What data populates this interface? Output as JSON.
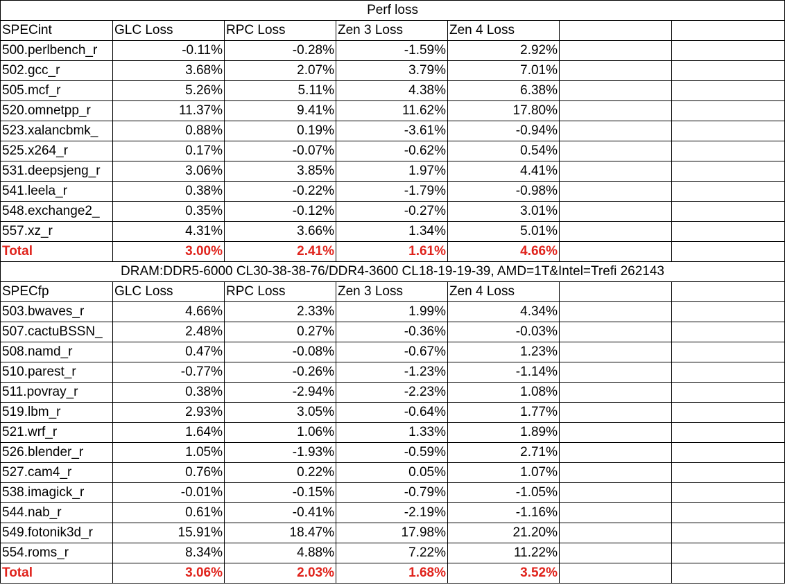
{
  "title": "Perf loss",
  "int_header": [
    "SPECint",
    "GLC Loss",
    "RPC Loss",
    "Zen 3 Loss",
    "Zen 4 Loss"
  ],
  "int_rows": [
    {
      "name": "500.perlbench_r",
      "glc": "-0.11%",
      "rpc": "-0.28%",
      "zen3": "-1.59%",
      "zen4": "2.92%"
    },
    {
      "name": "502.gcc_r",
      "glc": "3.68%",
      "rpc": "2.07%",
      "zen3": "3.79%",
      "zen4": "7.01%"
    },
    {
      "name": "505.mcf_r",
      "glc": "5.26%",
      "rpc": "5.11%",
      "zen3": "4.38%",
      "zen4": "6.38%"
    },
    {
      "name": "520.omnetpp_r",
      "glc": "11.37%",
      "rpc": "9.41%",
      "zen3": "11.62%",
      "zen4": "17.80%"
    },
    {
      "name": "523.xalancbmk_",
      "glc": "0.88%",
      "rpc": "0.19%",
      "zen3": "-3.61%",
      "zen4": "-0.94%"
    },
    {
      "name": "525.x264_r",
      "glc": "0.17%",
      "rpc": "-0.07%",
      "zen3": "-0.62%",
      "zen4": "0.54%"
    },
    {
      "name": "531.deepsjeng_r",
      "glc": "3.06%",
      "rpc": "3.85%",
      "zen3": "1.97%",
      "zen4": "4.41%"
    },
    {
      "name": "541.leela_r",
      "glc": "0.38%",
      "rpc": "-0.22%",
      "zen3": "-1.79%",
      "zen4": "-0.98%"
    },
    {
      "name": "548.exchange2_",
      "glc": "0.35%",
      "rpc": "-0.12%",
      "zen3": "-0.27%",
      "zen4": "3.01%"
    },
    {
      "name": "557.xz_r",
      "glc": "4.31%",
      "rpc": "3.66%",
      "zen3": "1.34%",
      "zen4": "5.01%"
    }
  ],
  "int_total": {
    "name": "Total",
    "glc": "3.00%",
    "rpc": "2.41%",
    "zen3": "1.61%",
    "zen4": "4.66%"
  },
  "dram_note": "DRAM:DDR5-6000 CL30-38-38-76/DDR4-3600 CL18-19-19-39, AMD=1T&Intel=Trefi 262143",
  "fp_header": [
    "SPECfp",
    "GLC Loss",
    "RPC Loss",
    "Zen 3 Loss",
    "Zen 4 Loss"
  ],
  "fp_rows": [
    {
      "name": "503.bwaves_r",
      "glc": "4.66%",
      "rpc": "2.33%",
      "zen3": "1.99%",
      "zen4": "4.34%"
    },
    {
      "name": "507.cactuBSSN_",
      "glc": "2.48%",
      "rpc": "0.27%",
      "zen3": "-0.36%",
      "zen4": "-0.03%"
    },
    {
      "name": "508.namd_r",
      "glc": "0.47%",
      "rpc": "-0.08%",
      "zen3": "-0.67%",
      "zen4": "1.23%"
    },
    {
      "name": "510.parest_r",
      "glc": "-0.77%",
      "rpc": "-0.26%",
      "zen3": "-1.23%",
      "zen4": "-1.14%"
    },
    {
      "name": "511.povray_r",
      "glc": "0.38%",
      "rpc": "-2.94%",
      "zen3": "-2.23%",
      "zen4": "1.08%"
    },
    {
      "name": "519.lbm_r",
      "glc": "2.93%",
      "rpc": "3.05%",
      "zen3": "-0.64%",
      "zen4": "1.77%"
    },
    {
      "name": "521.wrf_r",
      "glc": "1.64%",
      "rpc": "1.06%",
      "zen3": "1.33%",
      "zen4": "1.89%"
    },
    {
      "name": "526.blender_r",
      "glc": "1.05%",
      "rpc": "-1.93%",
      "zen3": "-0.59%",
      "zen4": "2.71%"
    },
    {
      "name": "527.cam4_r",
      "glc": "0.76%",
      "rpc": "0.22%",
      "zen3": "0.05%",
      "zen4": "1.07%"
    },
    {
      "name": "538.imagick_r",
      "glc": "-0.01%",
      "rpc": "-0.15%",
      "zen3": "-0.79%",
      "zen4": "-1.05%"
    },
    {
      "name": "544.nab_r",
      "glc": "0.61%",
      "rpc": "-0.41%",
      "zen3": "-2.19%",
      "zen4": "-1.16%"
    },
    {
      "name": "549.fotonik3d_r",
      "glc": "15.91%",
      "rpc": "18.47%",
      "zen3": "17.98%",
      "zen4": "21.20%"
    },
    {
      "name": "554.roms_r",
      "glc": "8.34%",
      "rpc": "4.88%",
      "zen3": "7.22%",
      "zen4": "11.22%"
    }
  ],
  "fp_total": {
    "name": "Total",
    "glc": "3.06%",
    "rpc": "2.03%",
    "zen3": "1.68%",
    "zen4": "3.52%"
  },
  "colors": {
    "total_text": "#e0231c",
    "grid": "#000000",
    "background": "#ffffff"
  }
}
